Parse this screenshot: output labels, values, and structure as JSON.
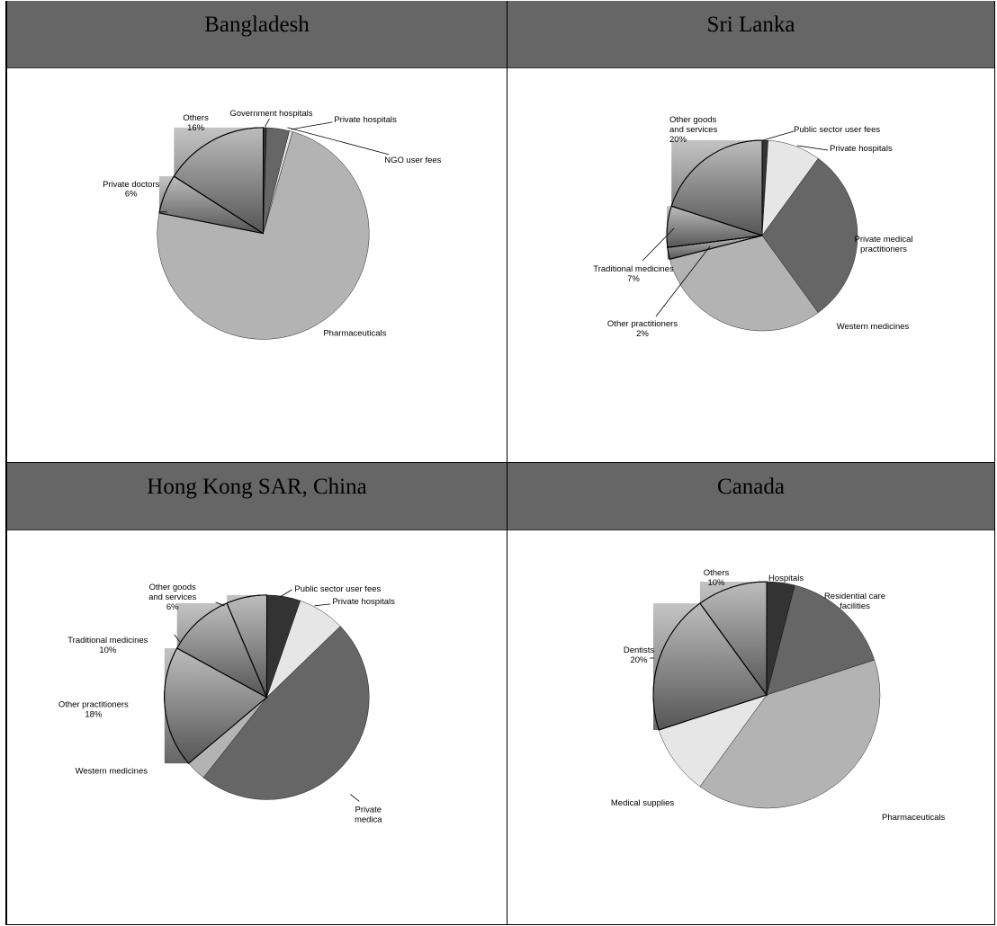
{
  "colors": {
    "header_bg": "#666666",
    "dark": "#333333",
    "mid": "#666666",
    "light": "#b3b3b3",
    "lighter": "#e6e6e6"
  },
  "panels": [
    {
      "title": "Bangladesh"
    },
    {
      "title": "Sri Lanka"
    },
    {
      "title": "Hong Kong SAR, China"
    },
    {
      "title": "Canada"
    }
  ],
  "chart_data": [
    {
      "type": "pie",
      "title": "Bangladesh",
      "slices": [
        {
          "label": "Government hospitals",
          "value": 0.5,
          "color": "#333333"
        },
        {
          "label": "Private hospitals",
          "value": 3.5,
          "color": "#666666"
        },
        {
          "label": "NGO user fees",
          "value": 0.5,
          "color": "#e6e6e6"
        },
        {
          "label": "Pharmaceuticals",
          "value": 74,
          "color": "#b3b3b3"
        },
        {
          "label": "Private doctors",
          "value": 6,
          "pct": "6%",
          "color": "#777777"
        },
        {
          "label": "Others",
          "value": 16,
          "pct": "16%",
          "color": "#999999"
        }
      ]
    },
    {
      "type": "pie",
      "title": "Sri Lanka",
      "slices": [
        {
          "label": "Public sector user fees",
          "value": 1,
          "color": "#333333"
        },
        {
          "label": "Private hospitals",
          "value": 9,
          "color": "#e6e6e6"
        },
        {
          "label": "Private medical practitioners",
          "value": 30,
          "color": "#666666"
        },
        {
          "label": "Western medicines",
          "value": 31,
          "color": "#b3b3b3"
        },
        {
          "label": "Other practitioners",
          "value": 2,
          "pct": "2%",
          "color": "#777777"
        },
        {
          "label": "Traditional medicines",
          "value": 7,
          "pct": "7%",
          "color": "#888888"
        },
        {
          "label": "Other goods and services",
          "value": 20,
          "pct": "20%",
          "color": "#999999"
        }
      ]
    },
    {
      "type": "pie",
      "title": "Hong Kong SAR, China",
      "slices": [
        {
          "label": "Public sector user fees",
          "value": 5,
          "color": "#333333"
        },
        {
          "label": "Private hospitals",
          "value": 7,
          "color": "#e6e6e6"
        },
        {
          "label": "Private medica",
          "value": 45,
          "color": "#666666"
        },
        {
          "label": "Western medicines",
          "value": 3,
          "color": "#b3b3b3"
        },
        {
          "label": "Other practitioners",
          "value": 18,
          "pct": "18%",
          "color": "#888888"
        },
        {
          "label": "Traditional medicines",
          "value": 10,
          "pct": "10%",
          "color": "#888888"
        },
        {
          "label": "Other goods and services",
          "value": 6,
          "pct": "6%",
          "color": "#999999"
        }
      ]
    },
    {
      "type": "pie",
      "title": "Canada",
      "slices": [
        {
          "label": "Hospitals",
          "value": 4,
          "color": "#333333"
        },
        {
          "label": "Residential care facilities",
          "value": 16,
          "color": "#666666"
        },
        {
          "label": "Pharmaceuticals",
          "value": 40,
          "color": "#b3b3b3"
        },
        {
          "label": "Medical supplies",
          "value": 10,
          "color": "#e6e6e6"
        },
        {
          "label": "Dentists",
          "value": 20,
          "pct": "20%",
          "color": "#888888"
        },
        {
          "label": "Others",
          "value": 10,
          "pct": "10%",
          "color": "#999999"
        }
      ]
    }
  ]
}
